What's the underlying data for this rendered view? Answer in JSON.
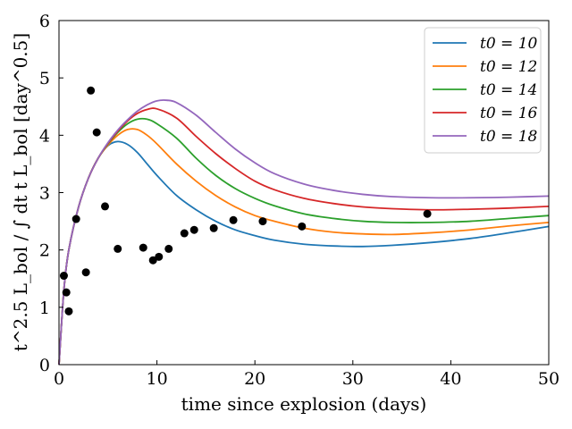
{
  "chart_data": {
    "type": "line",
    "title": "",
    "xlabel": "time since explosion (days)",
    "ylabel": "t^2.5 L_bol / ∫ dt t L_bol [day^0.5]",
    "xlim": [
      0,
      50
    ],
    "ylim": [
      0,
      6
    ],
    "xticks": [
      "0",
      "10",
      "20",
      "30",
      "40",
      "50"
    ],
    "yticks": [
      "0",
      "1",
      "2",
      "3",
      "4",
      "5",
      "6"
    ],
    "grid": false,
    "legend_position": "top-right",
    "series": [
      {
        "name": "t0 = 10",
        "color": "#1f77b4",
        "x": [
          0,
          0.5,
          1,
          2,
          3,
          4,
          5,
          6,
          7,
          8,
          9,
          10,
          12,
          14,
          16,
          18,
          20,
          22,
          25,
          28,
          31,
          34,
          38,
          42,
          46,
          50
        ],
        "y": [
          0,
          1.3,
          2.0,
          2.75,
          3.25,
          3.6,
          3.82,
          3.89,
          3.84,
          3.7,
          3.5,
          3.3,
          2.95,
          2.7,
          2.5,
          2.35,
          2.25,
          2.17,
          2.1,
          2.07,
          2.06,
          2.08,
          2.13,
          2.2,
          2.3,
          2.41
        ]
      },
      {
        "name": "t0 = 12",
        "color": "#ff7f0e",
        "x": [
          0,
          0.5,
          1,
          2,
          3,
          4,
          5,
          6,
          7,
          8,
          9,
          10,
          12,
          14,
          16,
          18,
          20,
          22,
          25,
          28,
          31,
          34,
          38,
          42,
          46,
          50
        ],
        "y": [
          0,
          1.3,
          2.0,
          2.75,
          3.25,
          3.6,
          3.83,
          4.0,
          4.1,
          4.1,
          4.0,
          3.85,
          3.5,
          3.2,
          2.95,
          2.75,
          2.6,
          2.5,
          2.38,
          2.31,
          2.28,
          2.27,
          2.3,
          2.35,
          2.42,
          2.48
        ]
      },
      {
        "name": "t0 = 14",
        "color": "#2ca02c",
        "x": [
          0,
          0.5,
          1,
          2,
          3,
          4,
          5,
          6,
          7,
          8,
          9,
          10,
          12,
          14,
          16,
          18,
          20,
          22,
          25,
          28,
          31,
          34,
          38,
          42,
          46,
          50
        ],
        "y": [
          0,
          1.3,
          2.0,
          2.75,
          3.25,
          3.6,
          3.85,
          4.05,
          4.2,
          4.28,
          4.28,
          4.2,
          3.95,
          3.6,
          3.3,
          3.07,
          2.9,
          2.77,
          2.63,
          2.55,
          2.5,
          2.48,
          2.48,
          2.5,
          2.55,
          2.6
        ]
      },
      {
        "name": "t0 = 16",
        "color": "#d62728",
        "x": [
          0,
          0.5,
          1,
          2,
          3,
          4,
          5,
          6,
          7,
          8,
          9,
          10,
          12,
          14,
          16,
          18,
          20,
          22,
          25,
          28,
          31,
          34,
          38,
          42,
          46,
          50
        ],
        "y": [
          0,
          1.3,
          2.0,
          2.75,
          3.25,
          3.6,
          3.86,
          4.07,
          4.25,
          4.38,
          4.45,
          4.46,
          4.3,
          3.98,
          3.68,
          3.42,
          3.2,
          3.05,
          2.9,
          2.81,
          2.75,
          2.72,
          2.7,
          2.71,
          2.73,
          2.76
        ]
      },
      {
        "name": "t0 = 18",
        "color": "#9467bd",
        "x": [
          0,
          0.5,
          1,
          2,
          3,
          4,
          5,
          6,
          7,
          8,
          9,
          10,
          11,
          12,
          14,
          16,
          18,
          20,
          22,
          25,
          28,
          31,
          34,
          38,
          42,
          46,
          50
        ],
        "y": [
          0,
          1.3,
          2.0,
          2.75,
          3.25,
          3.6,
          3.87,
          4.09,
          4.27,
          4.42,
          4.53,
          4.6,
          4.61,
          4.57,
          4.35,
          4.05,
          3.76,
          3.52,
          3.33,
          3.15,
          3.04,
          2.97,
          2.93,
          2.91,
          2.91,
          2.92,
          2.94
        ]
      }
    ],
    "observations": {
      "name": "data",
      "color": "#000000",
      "x": [
        0.5,
        0.75,
        1.0,
        1.75,
        2.75,
        3.25,
        3.85,
        4.7,
        6.0,
        8.6,
        9.6,
        10.2,
        11.2,
        12.8,
        13.8,
        15.8,
        17.8,
        20.8,
        24.8,
        37.6
      ],
      "y": [
        1.55,
        1.26,
        0.93,
        2.54,
        1.61,
        4.78,
        4.05,
        2.76,
        2.02,
        2.04,
        1.82,
        1.88,
        2.02,
        2.29,
        2.35,
        2.38,
        2.52,
        2.5,
        2.41,
        2.63
      ]
    }
  }
}
